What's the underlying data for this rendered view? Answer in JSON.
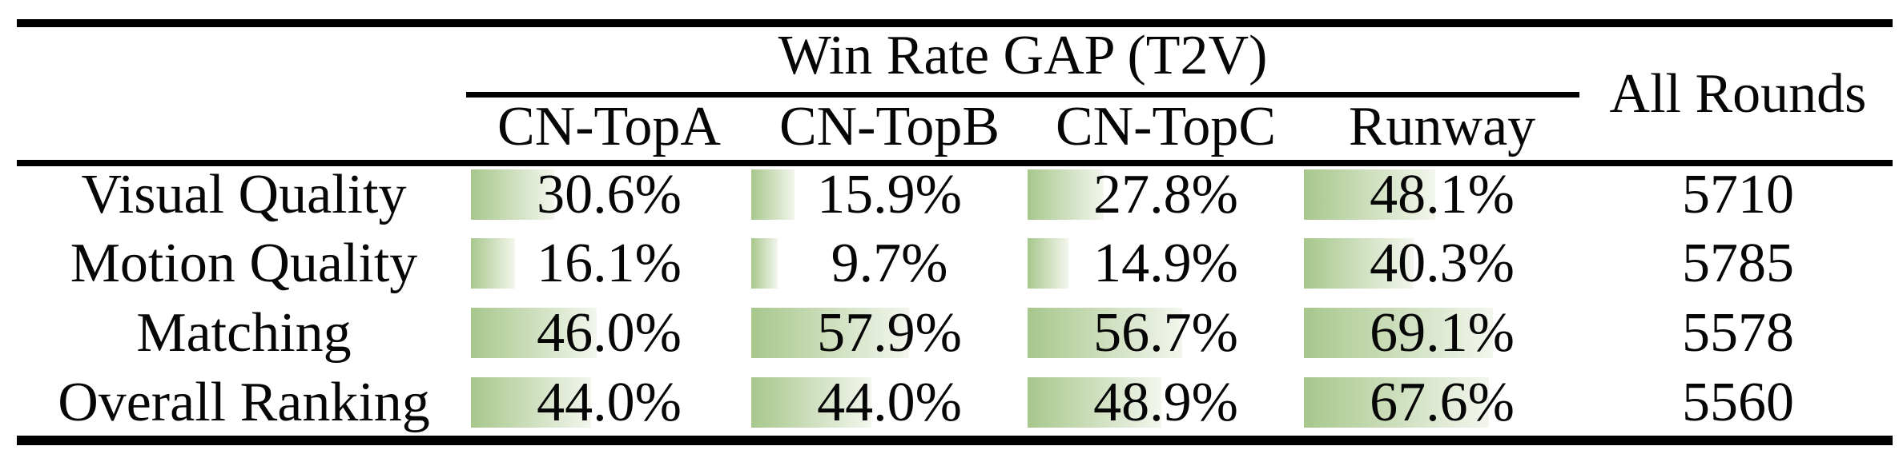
{
  "table": {
    "group_header": "Win Rate GAP (T2V)",
    "all_rounds_header": "All Rounds",
    "columns": [
      "CN-TopA",
      "CN-TopB",
      "CN-TopC",
      "Runway"
    ],
    "rows": [
      {
        "label": "Visual Quality",
        "cells": [
          {
            "pct": 30.6,
            "text": "30.6%"
          },
          {
            "pct": 15.9,
            "text": "15.9%"
          },
          {
            "pct": 27.8,
            "text": "27.8%"
          },
          {
            "pct": 48.1,
            "text": "48.1%"
          }
        ],
        "rounds": "5710"
      },
      {
        "label": "Motion Quality",
        "cells": [
          {
            "pct": 16.1,
            "text": "16.1%"
          },
          {
            "pct": 9.7,
            "text": "9.7%"
          },
          {
            "pct": 14.9,
            "text": "14.9%"
          },
          {
            "pct": 40.3,
            "text": "40.3%"
          }
        ],
        "rounds": "5785"
      },
      {
        "label": "Matching",
        "cells": [
          {
            "pct": 46.0,
            "text": "46.0%"
          },
          {
            "pct": 57.9,
            "text": "57.9%"
          },
          {
            "pct": 56.7,
            "text": "56.7%"
          },
          {
            "pct": 69.1,
            "text": "69.1%"
          }
        ],
        "rounds": "5578"
      },
      {
        "label": "Overall Ranking",
        "cells": [
          {
            "pct": 44.0,
            "text": "44.0%"
          },
          {
            "pct": 44.0,
            "text": "44.0%"
          },
          {
            "pct": 48.9,
            "text": "48.9%"
          },
          {
            "pct": 67.6,
            "text": "67.6%"
          }
        ],
        "rounds": "5560"
      }
    ]
  },
  "chart_data": {
    "type": "table",
    "title": "Win Rate GAP (T2V)",
    "row_header": [
      "Visual Quality",
      "Motion Quality",
      "Matching",
      "Overall Ranking"
    ],
    "column_header": [
      "CN-TopA",
      "CN-TopB",
      "CN-TopC",
      "Runway",
      "All Rounds"
    ],
    "values": [
      [
        30.6,
        15.9,
        27.8,
        48.1,
        5710
      ],
      [
        16.1,
        9.7,
        14.9,
        40.3,
        5785
      ],
      [
        46.0,
        57.9,
        56.7,
        69.1,
        5578
      ],
      [
        44.0,
        44.0,
        48.9,
        67.6,
        5560
      ]
    ],
    "cell_bar_style": "green gradient data bar, width proportional to percent, 100% = full cell width",
    "layout_hints": {
      "grid": "off",
      "style": "booktabs horizontal rules only"
    }
  },
  "colors": {
    "bar_gradient_left": "#a7c78c",
    "bar_gradient_right": "#f3f6ed",
    "rule": "#000000",
    "text": "#060606",
    "background": "#ffffff"
  }
}
